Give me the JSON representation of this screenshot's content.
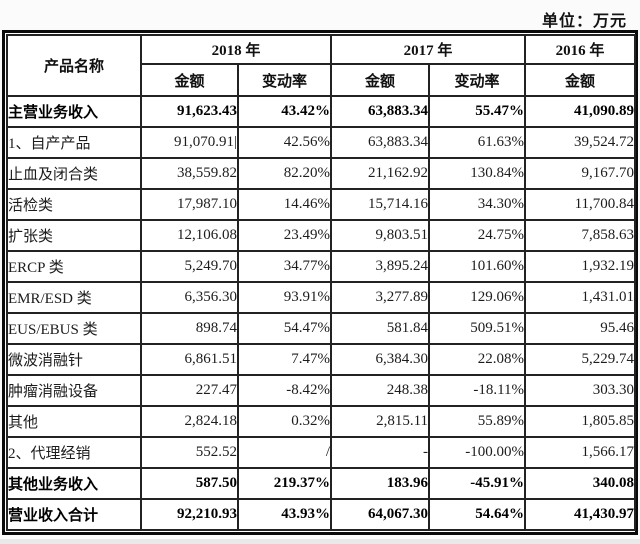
{
  "unit_label": "单位：万元",
  "colors": {
    "page_background": "#fbfbfb",
    "table_background": "#ffffff",
    "border": "#0a0a0a",
    "text": "#1c1c1c"
  },
  "table": {
    "name_header": "产品名称",
    "year_groups": [
      {
        "label": "2018 年",
        "subcols": [
          "金额",
          "变动率"
        ]
      },
      {
        "label": "2017 年",
        "subcols": [
          "金额",
          "变动率"
        ]
      },
      {
        "label": "2016 年",
        "subcols": [
          "金额"
        ]
      }
    ],
    "rows": [
      {
        "name": "主营业务收入",
        "bold": true,
        "cells": [
          "91,623.43",
          "43.42%",
          "63,883.34",
          "55.47%",
          "41,090.89"
        ]
      },
      {
        "name": "1、自产产品",
        "bold": false,
        "cells": [
          "91,070.91|",
          "42.56%",
          "63,883.34",
          "61.63%",
          "39,524.72"
        ]
      },
      {
        "name": "止血及闭合类",
        "bold": false,
        "cells": [
          "38,559.82",
          "82.20%",
          "21,162.92",
          "130.84%",
          "9,167.70"
        ]
      },
      {
        "name": "活检类",
        "bold": false,
        "cells": [
          "17,987.10",
          "14.46%",
          "15,714.16",
          "34.30%",
          "11,700.84"
        ]
      },
      {
        "name": "扩张类",
        "bold": false,
        "cells": [
          "12,106.08",
          "23.49%",
          "9,803.51",
          "24.75%",
          "7,858.63"
        ]
      },
      {
        "name": "ERCP 类",
        "bold": false,
        "cells": [
          "5,249.70",
          "34.77%",
          "3,895.24",
          "101.60%",
          "1,932.19"
        ]
      },
      {
        "name": "EMR/ESD 类",
        "bold": false,
        "cells": [
          "6,356.30",
          "93.91%",
          "3,277.89",
          "129.06%",
          "1,431.01"
        ]
      },
      {
        "name": "EUS/EBUS 类",
        "bold": false,
        "cells": [
          "898.74",
          "54.47%",
          "581.84",
          "509.51%",
          "95.46"
        ]
      },
      {
        "name": "微波消融针",
        "bold": false,
        "cells": [
          "6,861.51",
          "7.47%",
          "6,384.30",
          "22.08%",
          "5,229.74"
        ]
      },
      {
        "name": "肿瘤消融设备",
        "bold": false,
        "cells": [
          "227.47",
          "-8.42%",
          "248.38",
          "-18.11%",
          "303.30"
        ]
      },
      {
        "name": "其他",
        "bold": false,
        "cells": [
          "2,824.18",
          "0.32%",
          "2,815.11",
          "55.89%",
          "1,805.85"
        ]
      },
      {
        "name": "2、代理经销",
        "bold": false,
        "cells": [
          "552.52",
          "/",
          "-",
          "-100.00%",
          "1,566.17"
        ]
      },
      {
        "name": "其他业务收入",
        "bold": true,
        "cells": [
          "587.50",
          "219.37%",
          "183.96",
          "-45.91%",
          "340.08"
        ]
      },
      {
        "name": "营业收入合计",
        "bold": true,
        "cells": [
          "92,210.93",
          "43.93%",
          "64,067.30",
          "54.64%",
          "41,430.97"
        ]
      }
    ]
  }
}
